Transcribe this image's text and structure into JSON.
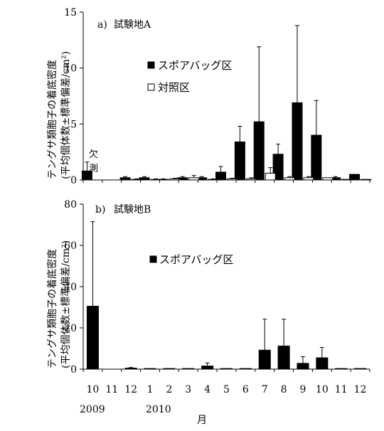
{
  "chart_data": [
    {
      "type": "bar",
      "panel_label": "a)",
      "title": "試験地A",
      "ylabel": [
        "テングサ類胞子の着底密度",
        "(平均個体数±標準偏差/cm²)"
      ],
      "ylim": [
        0,
        15
      ],
      "yticks": [
        0,
        5,
        10,
        15
      ],
      "categories": [
        "10",
        "11",
        "12",
        "1",
        "2",
        "3",
        "4",
        "5",
        "6",
        "7",
        "8",
        "9",
        "10",
        "11",
        "12"
      ],
      "note": [
        "欠",
        "測"
      ],
      "legend_position": "upper-center",
      "series": [
        {
          "name": "スポアバッグ区",
          "color": "#000000",
          "values": [
            0.8,
            0,
            0.2,
            0.2,
            0.05,
            0.2,
            0.2,
            0.7,
            3.4,
            5.2,
            2.3,
            6.9,
            4.0,
            0.2,
            0.5
          ],
          "errors": [
            0.8,
            0,
            0.1,
            0.1,
            0.05,
            0.1,
            0.1,
            0.5,
            1.4,
            6.7,
            0.9,
            6.9,
            3.1,
            0.1,
            0
          ]
        },
        {
          "name": "対照区",
          "color": "#ffffff",
          "values": [
            null,
            0,
            0.05,
            0.05,
            0.1,
            0.2,
            0.05,
            0.1,
            0.1,
            0.6,
            0.2,
            0.2,
            0.2,
            0.05,
            0.05
          ],
          "errors": [
            null,
            0,
            0.05,
            0.05,
            0.05,
            0.2,
            0.05,
            0.05,
            0.1,
            0.5,
            0.1,
            0.1,
            0,
            0,
            0
          ]
        }
      ]
    },
    {
      "type": "bar",
      "panel_label": "b)",
      "title": "試験地B",
      "ylabel": [
        "テングサ類胞子の着底密度",
        "(平均個体数±標準偏差/cm²)"
      ],
      "ylim": [
        0,
        80
      ],
      "yticks": [
        0,
        20,
        40,
        60,
        80
      ],
      "categories": [
        "10",
        "11",
        "12",
        "1",
        "2",
        "3",
        "4",
        "5",
        "6",
        "7",
        "8",
        "9",
        "10",
        "11",
        "12"
      ],
      "legend_position": "upper-center",
      "series": [
        {
          "name": "スポアバッグ区",
          "color": "#000000",
          "values": [
            30.5,
            0,
            0.5,
            0.3,
            0.3,
            0.3,
            1.5,
            0.3,
            0.3,
            9.2,
            11.2,
            2.8,
            5.5,
            0.3,
            0.3
          ],
          "errors": [
            41,
            0,
            0.3,
            0,
            0,
            0,
            1.5,
            0,
            0,
            15,
            13,
            3.2,
            5,
            0,
            0
          ]
        }
      ]
    }
  ],
  "x_axis": {
    "year_labels": [
      "2009",
      "2010"
    ],
    "xlabel": "月"
  }
}
